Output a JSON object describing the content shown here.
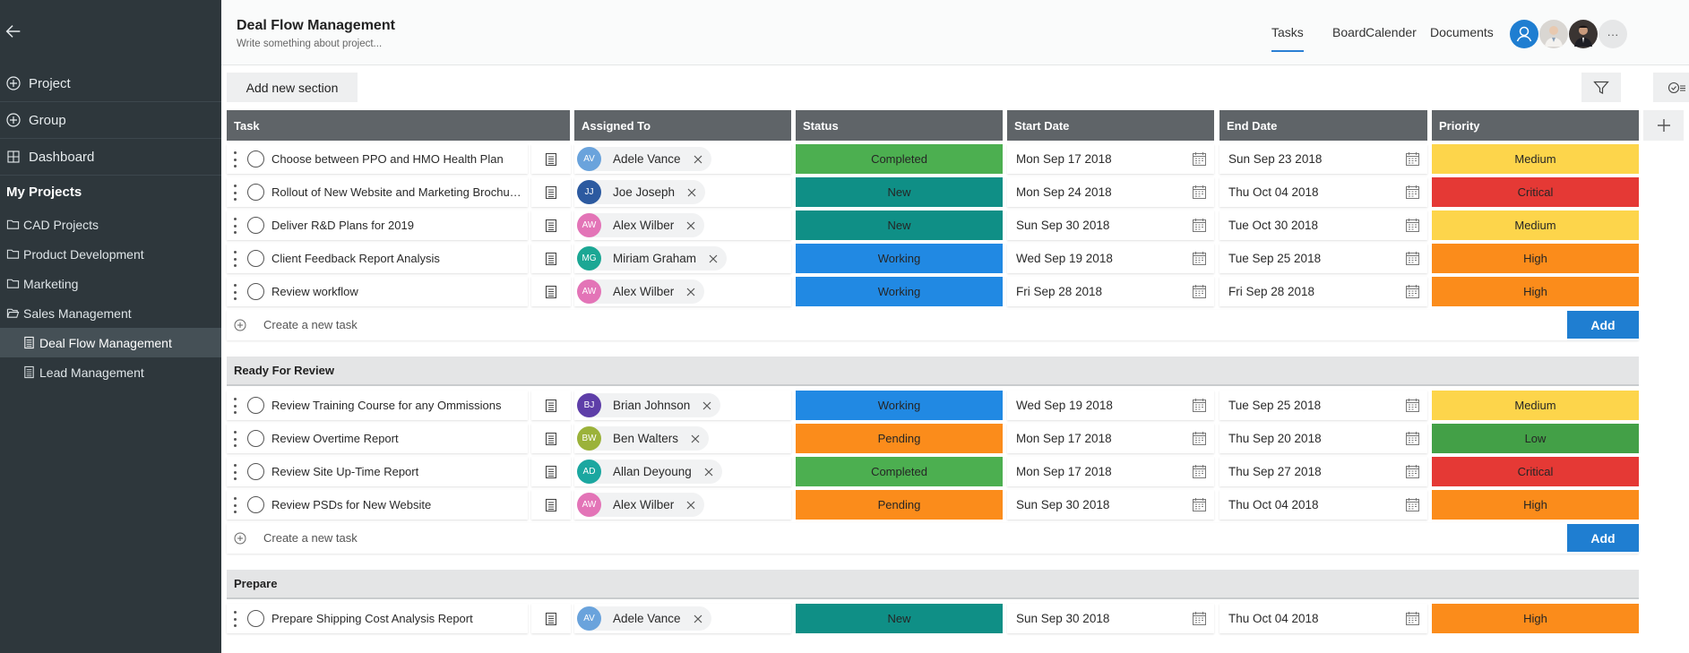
{
  "sidebar": {
    "nav": [
      {
        "label": "Project",
        "icon": "plus-circle-icon"
      },
      {
        "label": "Group",
        "icon": "plus-circle-icon"
      },
      {
        "label": "Dashboard",
        "icon": "grid-icon"
      }
    ],
    "my_projects_label": "My Projects",
    "projects": [
      {
        "label": "CAD Projects",
        "icon": "folder-icon"
      },
      {
        "label": "Product Development",
        "icon": "folder-icon"
      },
      {
        "label": "Marketing",
        "icon": "folder-icon"
      },
      {
        "label": "Sales Management",
        "icon": "folder-open-icon"
      },
      {
        "label": "Deal Flow Management",
        "icon": "document-icon",
        "active": true
      },
      {
        "label": "Lead Management",
        "icon": "document-icon"
      }
    ]
  },
  "header": {
    "title": "Deal Flow Management",
    "subtitle": "Write something about project...",
    "tabs": [
      "Tasks",
      "Board",
      "Calender",
      "Documents"
    ],
    "active_tab": "Tasks",
    "more_label": "···"
  },
  "toolbar": {
    "add_section_label": "Add new section"
  },
  "columns": [
    "Task",
    "Assigned To",
    "Status",
    "Start Date",
    "End Date",
    "Priority"
  ],
  "colors": {
    "Completed": "#4caf50",
    "New": "#0f8f86",
    "Working": "#2189e3",
    "Pending": "#fb8c1b",
    "Medium": "#fdd54b",
    "Critical": "#e53935",
    "High": "#fb8c1b",
    "Low": "#43a047"
  },
  "create_placeholder": "Create a new task",
  "add_label": "Add",
  "sections": [
    {
      "name": "",
      "tasks": [
        {
          "task": "Choose between PPO and HMO Health Plan",
          "initials": "AV",
          "avatar_color": "#6aa3dc",
          "assignee": "Adele Vance",
          "status": "Completed",
          "start": "Mon Sep 17 2018",
          "end": "Sun Sep 23 2018",
          "priority": "Medium"
        },
        {
          "task": "Rollout of New Website and Marketing Brochures",
          "initials": "JJ",
          "avatar_color": "#2c5aa0",
          "assignee": "Joe Joseph",
          "status": "New",
          "start": "Mon Sep 24 2018",
          "end": "Thu Oct 04 2018",
          "priority": "Critical"
        },
        {
          "task": "Deliver R&D Plans for 2019",
          "initials": "AW",
          "avatar_color": "#e374b7",
          "assignee": "Alex Wilber",
          "status": "New",
          "start": "Sun Sep 30 2018",
          "end": "Tue Oct 30 2018",
          "priority": "Medium"
        },
        {
          "task": "Client Feedback Report Analysis",
          "initials": "MG",
          "avatar_color": "#1ba794",
          "assignee": "Miriam Graham",
          "status": "Working",
          "start": "Wed Sep 19 2018",
          "end": "Tue Sep 25 2018",
          "priority": "High"
        },
        {
          "task": "Review workflow",
          "initials": "AW",
          "avatar_color": "#e374b7",
          "assignee": "Alex Wilber",
          "status": "Working",
          "start": "Fri Sep 28 2018",
          "end": "Fri Sep 28 2018",
          "priority": "High"
        }
      ]
    },
    {
      "name": "Ready For Review",
      "tasks": [
        {
          "task": "Review Training Course for any Ommissions",
          "initials": "BJ",
          "avatar_color": "#5e3ea8",
          "assignee": "Brian Johnson",
          "status": "Working",
          "start": "Wed Sep 19 2018",
          "end": "Tue Sep 25 2018",
          "priority": "Medium"
        },
        {
          "task": "Review Overtime Report",
          "initials": "BW",
          "avatar_color": "#9bb23a",
          "assignee": "Ben Walters",
          "status": "Pending",
          "start": "Mon Sep 17 2018",
          "end": "Thu Sep 20 2018",
          "priority": "Low"
        },
        {
          "task": "Review Site Up-Time Report",
          "initials": "AD",
          "avatar_color": "#1ba7a0",
          "assignee": "Allan Deyoung",
          "status": "Completed",
          "start": "Mon Sep 17 2018",
          "end": "Thu Sep 27 2018",
          "priority": "Critical"
        },
        {
          "task": "Review PSDs for New Website",
          "initials": "AW",
          "avatar_color": "#e374b7",
          "assignee": "Alex Wilber",
          "status": "Pending",
          "start": "Sun Sep 30 2018",
          "end": "Thu Oct 04 2018",
          "priority": "High"
        }
      ]
    },
    {
      "name": "Prepare",
      "tasks": [
        {
          "task": "Prepare Shipping Cost Analysis Report",
          "initials": "AV",
          "avatar_color": "#6aa3dc",
          "assignee": "Adele Vance",
          "status": "New",
          "start": "Sun Sep 30 2018",
          "end": "Thu Oct 04 2018",
          "priority": "High"
        }
      ]
    }
  ]
}
